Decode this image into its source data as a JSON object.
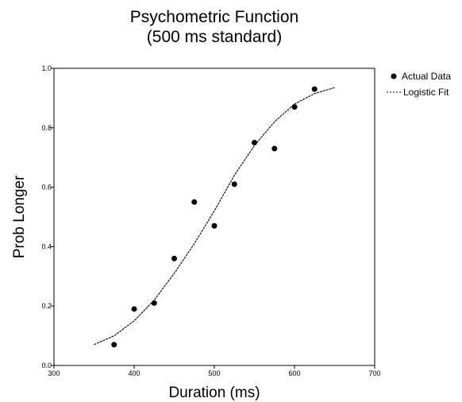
{
  "chart_data": {
    "type": "scatter",
    "title": "Psychometric Function",
    "subtitle": "(500 ms standard)",
    "xlabel": "Duration (ms)",
    "ylabel": "Prob Longer",
    "xlim": [
      300,
      700
    ],
    "ylim": [
      0,
      1
    ],
    "xticks": [
      "300",
      "400",
      "500",
      "600",
      "700"
    ],
    "yticks": [
      "0.0",
      "0.2",
      "0.4",
      "0.6",
      "0.8",
      "1.0"
    ],
    "grid": false,
    "legend_position": "top-right",
    "series": [
      {
        "name": "Actual Data",
        "kind": "scatter",
        "color": "#000000",
        "x": [
          375,
          400,
          425,
          450,
          475,
          500,
          525,
          550,
          575,
          600,
          625
        ],
        "y": [
          0.07,
          0.19,
          0.21,
          0.36,
          0.55,
          0.47,
          0.61,
          0.75,
          0.73,
          0.87,
          0.93
        ]
      },
      {
        "name": "Logistic Fit",
        "kind": "line",
        "color": "#000000",
        "x": [
          350,
          375,
          400,
          425,
          450,
          475,
          500,
          525,
          550,
          575,
          600,
          625,
          650
        ],
        "y": [
          0.07,
          0.1,
          0.15,
          0.22,
          0.31,
          0.41,
          0.52,
          0.64,
          0.74,
          0.82,
          0.88,
          0.915,
          0.935
        ]
      }
    ]
  }
}
